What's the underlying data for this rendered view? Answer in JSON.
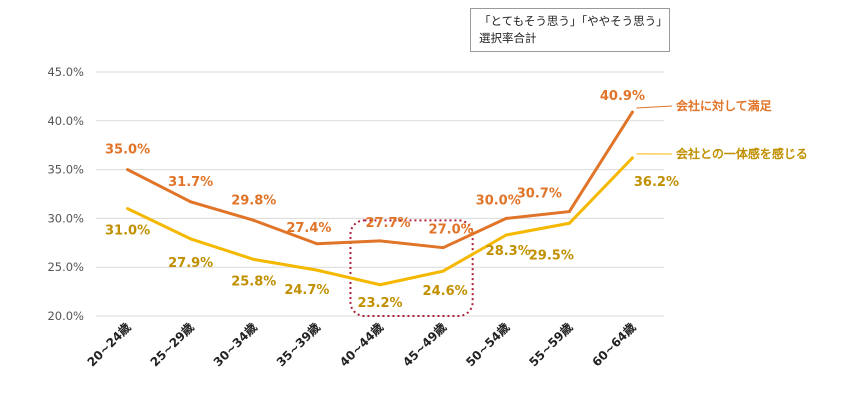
{
  "note": {
    "line1": "「とてもそう思う」「ややそう思う」",
    "line2": "選択率合計"
  },
  "chart_data": {
    "type": "line",
    "categories": [
      "20~24歳",
      "25~29歳",
      "30~34歳",
      "35~39歳",
      "40~44歳",
      "45~49歳",
      "50~54歳",
      "55~59歳",
      "60~64歳"
    ],
    "ylim": [
      20,
      45
    ],
    "yticks": [
      "20.0%",
      "25.0%",
      "30.0%",
      "35.0%",
      "40.0%",
      "45.0%"
    ],
    "grid": true,
    "highlight": {
      "from_category": "40~44歳",
      "to_category": "45~49歳",
      "style": "dotted-rounded-box"
    },
    "series": [
      {
        "name": "会社に対して満足",
        "color": "#E07428",
        "values": [
          35.0,
          31.7,
          29.8,
          27.4,
          27.7,
          27.0,
          30.0,
          30.7,
          40.9
        ],
        "labels": [
          "35.0%",
          "31.7%",
          "29.8%",
          "27.4%",
          "27.7%",
          "27.0%",
          "30.0%",
          "30.7%",
          "40.9%"
        ]
      },
      {
        "name": "会社との一体感を感じる",
        "color": "#F5B800",
        "label_color": "#C09000",
        "values": [
          31.0,
          27.9,
          25.8,
          24.7,
          23.2,
          24.6,
          28.3,
          29.5,
          36.2
        ],
        "labels": [
          "31.0%",
          "27.9%",
          "25.8%",
          "24.7%",
          "23.2%",
          "24.6%",
          "28.3%",
          "29.5%",
          "36.2%"
        ]
      }
    ]
  },
  "colors": {
    "grid": "#D9D9D9",
    "highlight_box": "#B0203A"
  }
}
